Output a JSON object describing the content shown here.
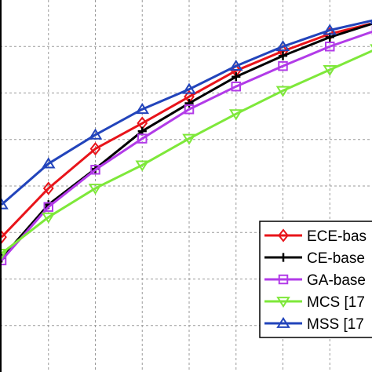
{
  "chart_data": {
    "type": "line",
    "grid": true,
    "xlim": [
      0,
      8
    ],
    "ylim": [
      0,
      8
    ],
    "x": [
      0,
      1,
      2,
      3,
      4,
      5,
      6,
      7,
      8
    ],
    "series": [
      {
        "name": "ECE-bas",
        "color": "#e8141a",
        "marker": "diamond",
        "values": [
          2.9,
          3.95,
          4.8,
          5.35,
          5.92,
          6.48,
          6.9,
          7.27,
          7.52
        ]
      },
      {
        "name": "CE-base",
        "color": "#000000",
        "marker": "plus",
        "values": [
          2.45,
          3.6,
          4.37,
          5.18,
          5.78,
          6.35,
          6.8,
          7.2,
          7.52
        ]
      },
      {
        "name": "GA-base",
        "color": "#b23be8",
        "marker": "square",
        "values": [
          2.4,
          3.55,
          4.35,
          5.02,
          5.65,
          6.14,
          6.58,
          7.0,
          7.35
        ]
      },
      {
        "name": "MCS [17",
        "color": "#7ee83a",
        "marker": "triangle-down",
        "values": [
          2.55,
          3.33,
          3.95,
          4.45,
          5.02,
          5.55,
          6.05,
          6.5,
          6.95
        ]
      },
      {
        "name": "MSS [17",
        "color": "#2244bb",
        "marker": "triangle-up",
        "values": [
          3.6,
          4.48,
          5.1,
          5.65,
          6.08,
          6.58,
          7.0,
          7.35,
          7.58
        ]
      }
    ],
    "legend_position": "bottom-right"
  }
}
